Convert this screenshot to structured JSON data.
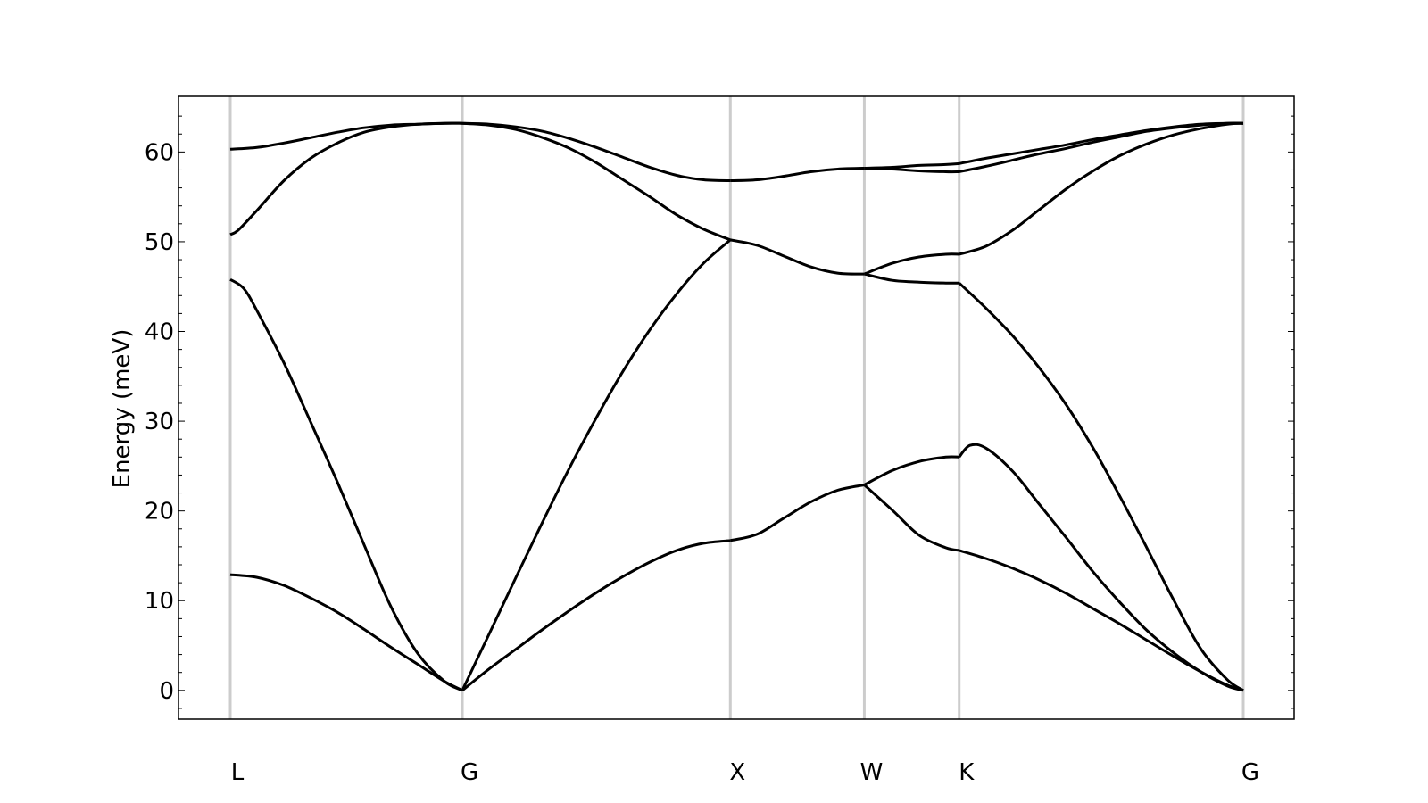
{
  "chart_data": {
    "type": "line",
    "title": "",
    "xlabel": "",
    "ylabel": "Energy (meV)",
    "ylim": [
      -3.2,
      66.2
    ],
    "yticks": [
      0,
      10,
      20,
      30,
      40,
      50,
      60
    ],
    "grid": false,
    "high_symmetry_points": [
      {
        "label": "L",
        "x": 0.0
      },
      {
        "label": "G",
        "x": 0.866
      },
      {
        "label": "X",
        "x": 1.866
      },
      {
        "label": "W",
        "x": 2.366
      },
      {
        "label": "K",
        "x": 2.72
      },
      {
        "label": "G",
        "x": 3.78
      }
    ],
    "series": [
      {
        "segment": "L-G",
        "x": [
          0,
          0.1,
          0.2,
          0.3,
          0.4,
          0.5,
          0.6,
          0.7,
          0.8,
          0.866
        ],
        "values": [
          12.9,
          12.6,
          11.7,
          10.3,
          8.7,
          6.8,
          4.8,
          2.9,
          1.0,
          0.0
        ]
      },
      {
        "segment": "L-G",
        "x": [
          0,
          0.05,
          0.1,
          0.2,
          0.3,
          0.4,
          0.5,
          0.6,
          0.7,
          0.8,
          0.866
        ],
        "values": [
          45.8,
          44.8,
          42.3,
          36.5,
          29.9,
          23.2,
          16.2,
          9.3,
          4.1,
          1.0,
          0.0
        ]
      },
      {
        "segment": "L-G",
        "x": [
          0,
          0.03,
          0.1,
          0.2,
          0.3,
          0.4,
          0.5,
          0.6,
          0.7,
          0.8,
          0.866
        ],
        "values": [
          50.8,
          51.3,
          53.5,
          56.8,
          59.3,
          61.0,
          62.2,
          62.8,
          63.1,
          63.2,
          63.2
        ]
      },
      {
        "segment": "L-G",
        "x": [
          0,
          0.1,
          0.2,
          0.3,
          0.4,
          0.5,
          0.6,
          0.7,
          0.8,
          0.866
        ],
        "values": [
          60.3,
          60.5,
          61.0,
          61.6,
          62.2,
          62.7,
          63.0,
          63.1,
          63.2,
          63.2
        ]
      },
      {
        "segment": "G-X",
        "x": [
          0.866,
          0.966,
          1.066,
          1.166,
          1.266,
          1.366,
          1.466,
          1.566,
          1.666,
          1.766,
          1.866
        ],
        "values": [
          0.0,
          2.4,
          4.6,
          6.8,
          8.9,
          10.9,
          12.7,
          14.3,
          15.6,
          16.4,
          16.7
        ]
      },
      {
        "segment": "G-X",
        "x": [
          0.866,
          0.966,
          1.066,
          1.166,
          1.266,
          1.366,
          1.466,
          1.566,
          1.666,
          1.766,
          1.866
        ],
        "values": [
          0.0,
          6.3,
          12.6,
          18.8,
          24.8,
          30.4,
          35.6,
          40.2,
          44.2,
          47.6,
          50.2
        ]
      },
      {
        "segment": "G-X",
        "x": [
          0.866,
          0.966,
          1.066,
          1.166,
          1.266,
          1.366,
          1.466,
          1.566,
          1.666,
          1.766,
          1.866
        ],
        "values": [
          63.2,
          63.0,
          62.5,
          61.6,
          60.4,
          58.8,
          56.9,
          55.0,
          53.0,
          51.4,
          50.2
        ]
      },
      {
        "segment": "G-X",
        "x": [
          0.866,
          0.966,
          1.066,
          1.166,
          1.266,
          1.366,
          1.466,
          1.566,
          1.666,
          1.766,
          1.866
        ],
        "values": [
          63.2,
          63.1,
          62.8,
          62.3,
          61.5,
          60.5,
          59.4,
          58.3,
          57.4,
          56.9,
          56.8
        ]
      },
      {
        "segment": "X-W",
        "x": [
          1.866,
          1.966,
          2.066,
          2.166,
          2.266,
          2.366
        ],
        "values": [
          16.7,
          17.4,
          19.2,
          21.0,
          22.3,
          22.9
        ]
      },
      {
        "segment": "X-W",
        "x": [
          1.866,
          1.966,
          2.066,
          2.166,
          2.266,
          2.366
        ],
        "values": [
          50.2,
          49.6,
          48.4,
          47.2,
          46.5,
          46.4
        ]
      },
      {
        "segment": "X-W",
        "x": [
          1.866,
          1.966,
          2.066,
          2.166,
          2.266,
          2.366
        ],
        "values": [
          56.8,
          56.9,
          57.3,
          57.8,
          58.1,
          58.2
        ]
      },
      {
        "segment": "W-K",
        "x": [
          2.366,
          2.47,
          2.57,
          2.67,
          2.72
        ],
        "values": [
          22.9,
          20.1,
          17.3,
          15.9,
          15.6
        ]
      },
      {
        "segment": "W-K",
        "x": [
          2.366,
          2.47,
          2.57,
          2.67,
          2.72
        ],
        "values": [
          22.9,
          24.5,
          25.5,
          26.0,
          26.0
        ]
      },
      {
        "segment": "W-K",
        "x": [
          2.366,
          2.47,
          2.57,
          2.67,
          2.72
        ],
        "values": [
          46.4,
          45.7,
          45.5,
          45.4,
          45.4
        ]
      },
      {
        "segment": "W-K",
        "x": [
          2.366,
          2.47,
          2.57,
          2.67,
          2.72
        ],
        "values": [
          46.4,
          47.6,
          48.3,
          48.6,
          48.6
        ]
      },
      {
        "segment": "W-K",
        "x": [
          2.366,
          2.47,
          2.57,
          2.67,
          2.72
        ],
        "values": [
          58.2,
          58.1,
          57.9,
          57.8,
          57.8
        ]
      },
      {
        "segment": "W-K",
        "x": [
          2.366,
          2.47,
          2.57,
          2.67,
          2.72
        ],
        "values": [
          58.2,
          58.3,
          58.5,
          58.6,
          58.7
        ]
      },
      {
        "segment": "K-G",
        "x": [
          2.72,
          2.82,
          2.92,
          3.02,
          3.12,
          3.22,
          3.32,
          3.42,
          3.52,
          3.62,
          3.72,
          3.78
        ],
        "values": [
          15.6,
          14.7,
          13.6,
          12.3,
          10.8,
          9.1,
          7.4,
          5.6,
          3.8,
          2.1,
          0.6,
          0.0
        ]
      },
      {
        "segment": "K-G",
        "x": [
          2.72,
          2.76,
          2.82,
          2.92,
          3.02,
          3.12,
          3.22,
          3.32,
          3.42,
          3.52,
          3.62,
          3.72,
          3.78
        ],
        "values": [
          26.0,
          27.3,
          27.0,
          24.4,
          20.7,
          17.0,
          13.2,
          9.8,
          6.7,
          4.2,
          2.1,
          0.5,
          0.0
        ]
      },
      {
        "segment": "K-G",
        "x": [
          2.72,
          2.82,
          2.92,
          3.02,
          3.12,
          3.22,
          3.32,
          3.42,
          3.52,
          3.62,
          3.72,
          3.78
        ],
        "values": [
          45.4,
          42.6,
          39.5,
          35.9,
          31.8,
          27.0,
          21.6,
          15.9,
          10.1,
          4.7,
          1.2,
          0.0
        ]
      },
      {
        "segment": "K-G",
        "x": [
          2.72,
          2.82,
          2.92,
          3.02,
          3.12,
          3.22,
          3.32,
          3.42,
          3.52,
          3.62,
          3.72,
          3.78
        ],
        "values": [
          48.6,
          49.5,
          51.3,
          53.6,
          55.9,
          57.9,
          59.6,
          60.9,
          61.9,
          62.6,
          63.1,
          63.2
        ]
      },
      {
        "segment": "K-G",
        "x": [
          2.72,
          2.82,
          2.92,
          3.02,
          3.12,
          3.22,
          3.32,
          3.42,
          3.52,
          3.62,
          3.72,
          3.78
        ],
        "values": [
          57.8,
          58.4,
          59.1,
          59.8,
          60.4,
          61.1,
          61.7,
          62.3,
          62.7,
          63.0,
          63.2,
          63.2
        ]
      },
      {
        "segment": "K-G",
        "x": [
          2.72,
          2.82,
          2.92,
          3.02,
          3.12,
          3.22,
          3.32,
          3.42,
          3.52,
          3.62,
          3.72,
          3.78
        ],
        "values": [
          58.7,
          59.3,
          59.8,
          60.3,
          60.8,
          61.4,
          61.9,
          62.4,
          62.8,
          63.1,
          63.2,
          63.2
        ]
      }
    ]
  }
}
